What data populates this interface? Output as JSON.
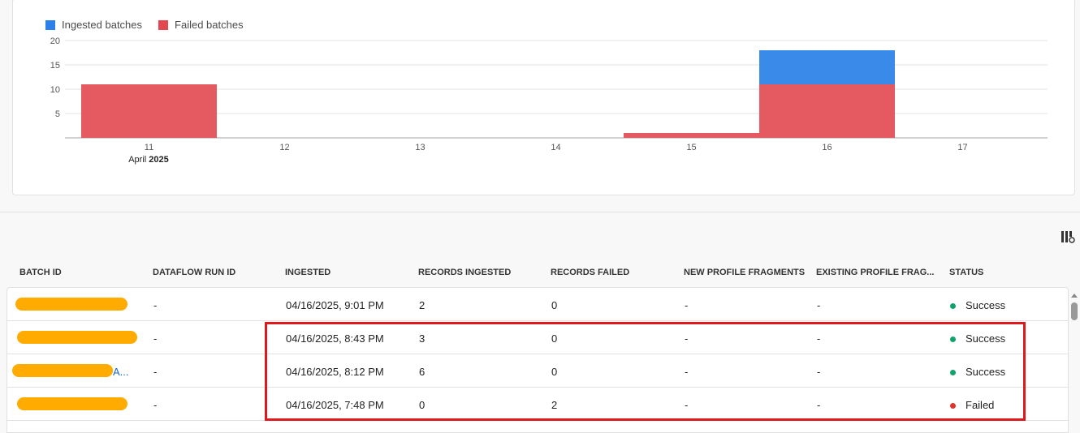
{
  "chart_data": {
    "type": "bar",
    "stacked": true,
    "categories": [
      "11",
      "12",
      "13",
      "14",
      "15",
      "16",
      "17"
    ],
    "category_sublabel": {
      "month": "April",
      "year": "2025"
    },
    "series": [
      {
        "name": "Failed batches",
        "color": "#e55a61",
        "values": [
          11,
          0,
          0,
          0,
          1,
          11,
          0
        ]
      },
      {
        "name": "Ingested batches",
        "color": "#3a8ae9",
        "values": [
          0,
          0,
          0,
          0,
          0,
          7,
          0
        ]
      }
    ],
    "yticks": [
      "5",
      "10",
      "15",
      "20"
    ],
    "ylim": [
      0,
      20
    ],
    "grid": true,
    "legend": "top-left"
  },
  "legend": {
    "ingested": "Ingested batches",
    "failed": "Failed batches",
    "ingested_color": "#2d80e8",
    "failed_color": "#e34850"
  },
  "table": {
    "columns": [
      "BATCH ID",
      "DATAFLOW RUN ID",
      "INGESTED",
      "RECORDS INGESTED",
      "RECORDS FAILED",
      "NEW PROFILE FRAGMENTS",
      "EXISTING PROFILE FRAG...",
      "STATUS"
    ],
    "rows": [
      {
        "batch_id_fragment": "..",
        "dataflow_run_id": "-",
        "ingested": "04/16/2025, 9:01 PM",
        "records_ingested": "2",
        "records_failed": "0",
        "new_fragments": "-",
        "existing_fragments": "-",
        "status": "Success",
        "status_color": "#12a26c"
      },
      {
        "batch_id_fragment": "",
        "dataflow_run_id": "-",
        "ingested": "04/16/2025, 8:43 PM",
        "records_ingested": "3",
        "records_failed": "0",
        "new_fragments": "-",
        "existing_fragments": "-",
        "status": "Success",
        "status_color": "#12a26c"
      },
      {
        "batch_id_fragment": "A...",
        "dataflow_run_id": "-",
        "ingested": "04/16/2025, 8:12 PM",
        "records_ingested": "6",
        "records_failed": "0",
        "new_fragments": "-",
        "existing_fragments": "-",
        "status": "Success",
        "status_color": "#12a26c"
      },
      {
        "batch_id_fragment": "",
        "dataflow_run_id": "-",
        "ingested": "04/16/2025, 7:48 PM",
        "records_ingested": "0",
        "records_failed": "2",
        "new_fragments": "-",
        "existing_fragments": "-",
        "status": "Failed",
        "status_color": "#e0342b"
      }
    ]
  },
  "icons": {
    "column_settings": "column-settings-icon"
  }
}
